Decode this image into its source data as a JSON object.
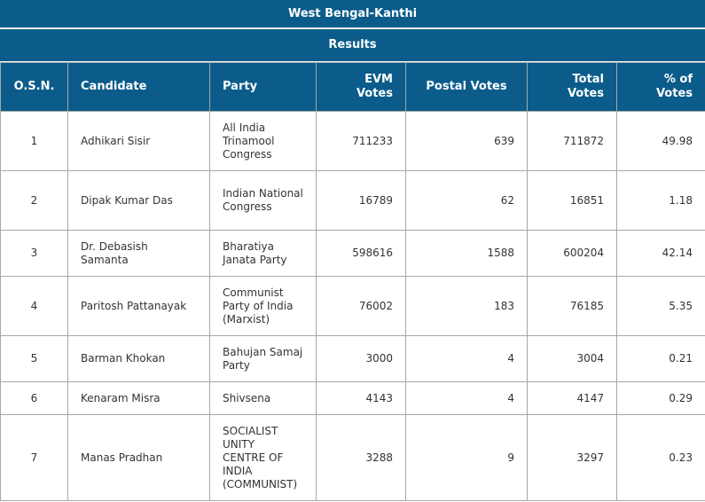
{
  "title": "West Bengal-Kanthi",
  "subtitle": "Results",
  "columns": [
    "O.S.N.",
    "Candidate",
    "Party",
    "EVM Votes",
    "Postal Votes",
    "Total Votes",
    "% of Votes"
  ],
  "rows": [
    {
      "osn": "1",
      "candidate": "Adhikari Sisir",
      "party": "All India Trinamool Congress",
      "evm": "711233",
      "postal": "639",
      "total": "711872",
      "pct": "49.98"
    },
    {
      "osn": "2",
      "candidate": "Dipak Kumar Das",
      "party": "Indian National Congress",
      "evm": "16789",
      "postal": "62",
      "total": "16851",
      "pct": "1.18"
    },
    {
      "osn": "3",
      "candidate": "Dr. Debasish Samanta",
      "party": "Bharatiya Janata Party",
      "evm": "598616",
      "postal": "1588",
      "total": "600204",
      "pct": "42.14"
    },
    {
      "osn": "4",
      "candidate": "Paritosh Pattanayak",
      "party": "Communist Party of India (Marxist)",
      "evm": "76002",
      "postal": "183",
      "total": "76185",
      "pct": "5.35"
    },
    {
      "osn": "5",
      "candidate": "Barman Khokan",
      "party": "Bahujan Samaj Party",
      "evm": "3000",
      "postal": "4",
      "total": "3004",
      "pct": "0.21"
    },
    {
      "osn": "6",
      "candidate": "Kenaram Misra",
      "party": "Shivsena",
      "evm": "4143",
      "postal": "4",
      "total": "4147",
      "pct": "0.29"
    },
    {
      "osn": "7",
      "candidate": "Manas Pradhan",
      "party": "SOCIALIST UNITY CENTRE OF INDIA (COMMUNIST)",
      "evm": "3288",
      "postal": "9",
      "total": "3297",
      "pct": "0.23"
    }
  ]
}
